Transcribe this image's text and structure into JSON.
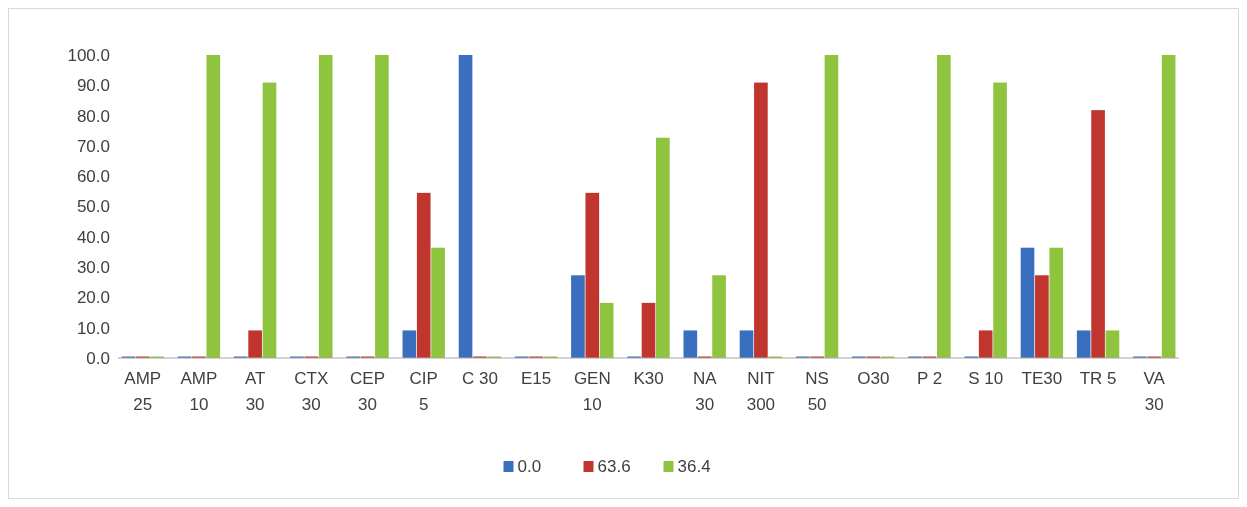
{
  "chart_data": {
    "type": "bar",
    "categories": [
      "AMP\n25",
      "AMP\n10",
      "AT\n30",
      "CTX\n30",
      "CEP\n30",
      "CIP\n5",
      "C 30",
      "E15",
      "GEN\n10",
      "K30",
      "NA\n30",
      "NIT\n300",
      "NS\n50",
      "O30",
      "P 2",
      "S 10",
      "TE30",
      "TR 5",
      "VA\n30"
    ],
    "series": [
      {
        "name": "0.0",
        "color": "#3a6fbf",
        "values": [
          0,
          0,
          0,
          0,
          0,
          9.1,
          100,
          0,
          27.3,
          0,
          9.1,
          9.1,
          0,
          0,
          0,
          0,
          36.4,
          9.1,
          0
        ]
      },
      {
        "name": "63.6",
        "color": "#c0362f",
        "values": [
          0,
          0,
          9.1,
          0,
          0,
          54.5,
          0,
          0,
          54.5,
          18.2,
          0,
          90.9,
          0,
          0,
          0,
          9.1,
          27.3,
          81.8,
          0
        ]
      },
      {
        "name": "36.4",
        "color": "#8fc43f",
        "values": [
          0,
          100,
          90.9,
          100,
          100,
          36.4,
          0,
          0,
          18.2,
          72.7,
          27.3,
          0,
          100,
          0,
          100,
          90.9,
          36.4,
          9.1,
          100
        ]
      }
    ],
    "ylim": [
      0,
      100
    ],
    "yticks": [
      {
        "value": 0,
        "label": "0.0"
      },
      {
        "value": 10,
        "label": "10.0"
      },
      {
        "value": 20,
        "label": "20.0"
      },
      {
        "value": 30,
        "label": "30.0"
      },
      {
        "value": 40,
        "label": "40.0"
      },
      {
        "value": 50,
        "label": "50.0"
      },
      {
        "value": 60,
        "label": "60.0"
      },
      {
        "value": 70,
        "label": "70.0"
      },
      {
        "value": 80,
        "label": "80.0"
      },
      {
        "value": 90,
        "label": "90.0"
      },
      {
        "value": 100,
        "label": "100.0"
      }
    ],
    "legend": "bottom"
  }
}
